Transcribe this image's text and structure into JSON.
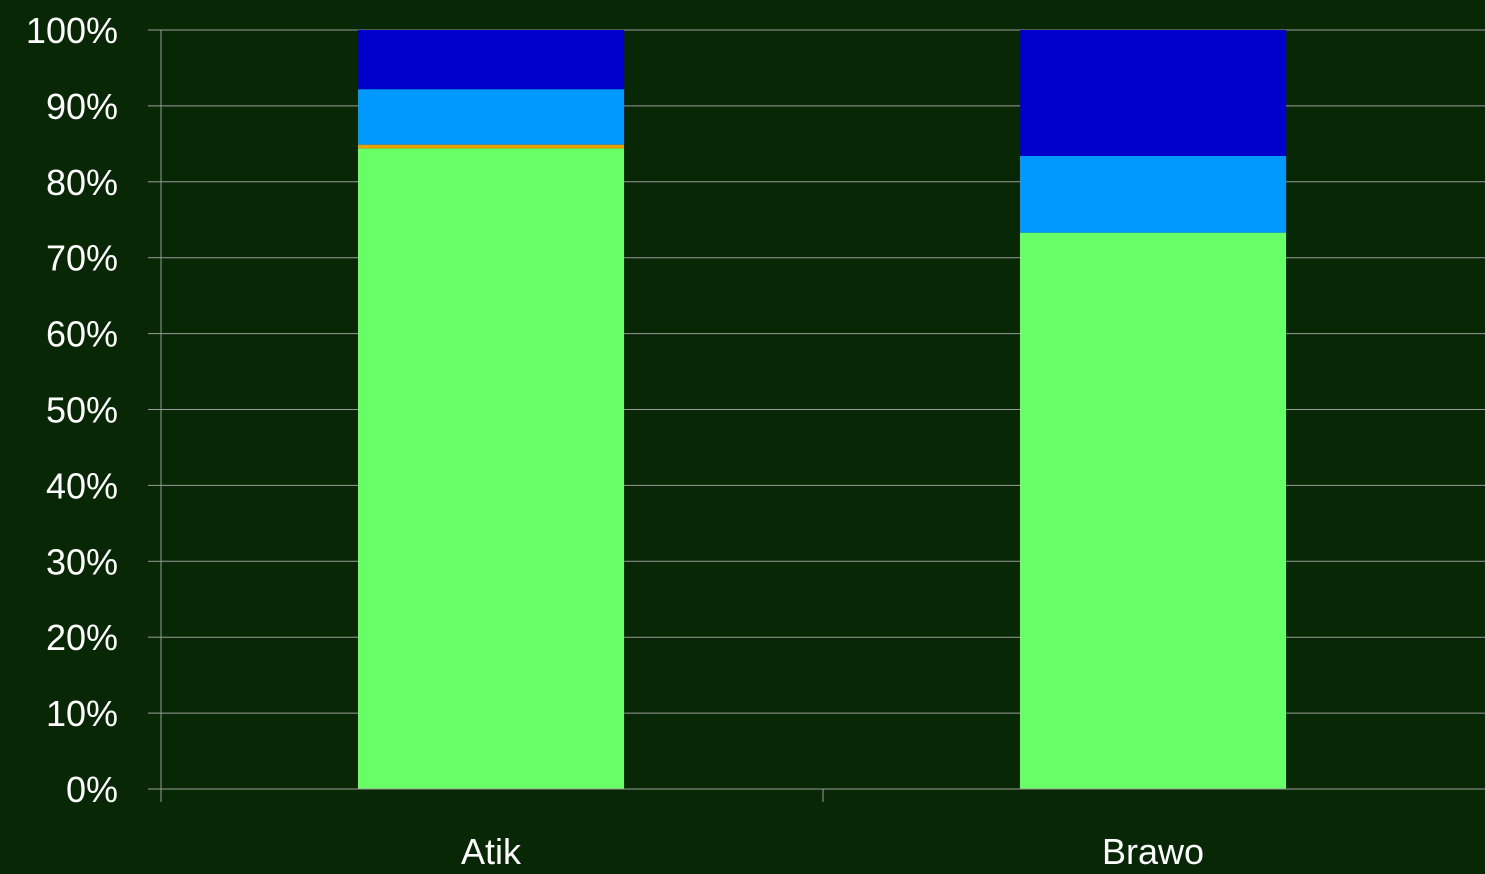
{
  "chart_data": {
    "type": "bar",
    "stacked": true,
    "normalized": true,
    "categories": [
      "Atik",
      "Brawo"
    ],
    "series": [
      {
        "values": [
          84.4,
          73.3
        ],
        "color": "#66ff66"
      },
      {
        "values": [
          0.5,
          0.0
        ],
        "color": "#e8a000"
      },
      {
        "values": [
          7.3,
          10.1
        ],
        "color": "#0099ff"
      },
      {
        "values": [
          7.8,
          16.6
        ],
        "color": "#0000cc"
      }
    ],
    "ylim": [
      0,
      100
    ],
    "yticks": [
      "0%",
      "10%",
      "20%",
      "30%",
      "40%",
      "50%",
      "60%",
      "70%",
      "80%",
      "90%",
      "100%"
    ],
    "grid": true,
    "legend": "none",
    "colors": {
      "background": "#082805",
      "gridline": "#9a9a9a",
      "axis": "#9a9a9a",
      "text": "#ffffff"
    }
  }
}
